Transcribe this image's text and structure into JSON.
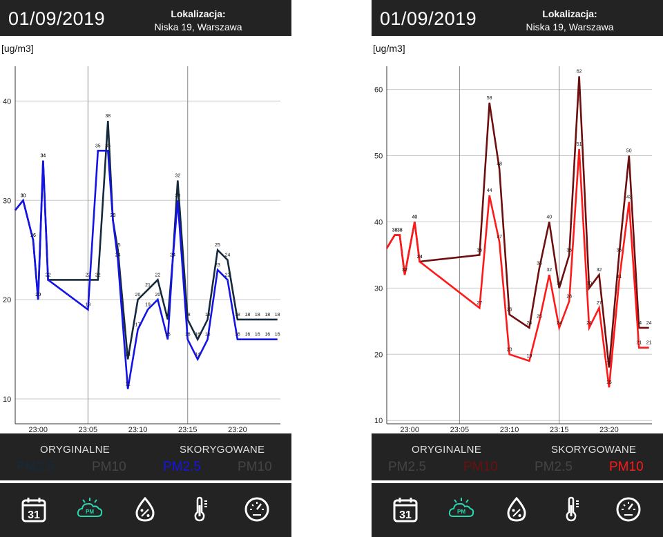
{
  "panels": [
    {
      "date": "01/09/2019",
      "location_title": "Lokalizacja:",
      "location_address": "Niska 19, Warszawa",
      "unit": "[ug/m3]",
      "legend": {
        "original": "ORYGINALNE",
        "corrected": "SKORYGOWANE",
        "items": [
          {
            "label": "PM2.5",
            "color": "#152a3d"
          },
          {
            "label": "PM10",
            "color": "#444444"
          },
          {
            "label": "PM2.5",
            "color": "#1414e6"
          },
          {
            "label": "PM10",
            "color": "#444444"
          }
        ]
      },
      "toolbar": {
        "calendar_day": "31",
        "pm_label": "PM",
        "active": "pm"
      }
    },
    {
      "date": "01/09/2019",
      "location_title": "Lokalizacja:",
      "location_address": "Niska 19, Warszawa",
      "unit": "[ug/m3]",
      "legend": {
        "original": "ORYGINALNE",
        "corrected": "SKORYGOWANE",
        "items": [
          {
            "label": "PM2.5",
            "color": "#444444"
          },
          {
            "label": "PM10",
            "color": "#6e0f0f"
          },
          {
            "label": "PM2.5",
            "color": "#444444"
          },
          {
            "label": "PM10",
            "color": "#ff1a1a"
          }
        ]
      },
      "toolbar": {
        "calendar_day": "31",
        "pm_label": "PM",
        "active": "pm"
      }
    }
  ],
  "colors": {
    "active_icon": "#2bd6b0",
    "icon": "#ffffff",
    "bar_bg": "#232323"
  },
  "chart_data": [
    {
      "type": "line",
      "x_ticks": [
        "23:00",
        "23:05",
        "23:10",
        "23:15",
        "23:20"
      ],
      "x_tick_minutes": [
        0,
        5,
        10,
        15,
        20
      ],
      "xlim": [
        -2.3,
        24.3
      ],
      "y_ticks": [
        10,
        20,
        30,
        40
      ],
      "ylim": [
        7.5,
        43.5
      ],
      "grid": true,
      "series": [
        {
          "name": "PM2.5",
          "color": "#152a3d",
          "labels_shown": true,
          "x": [
            -2.3,
            -1.5,
            -0.5,
            0,
            0.5,
            1,
            5,
            6,
            7,
            7.5,
            8,
            9,
            10,
            11,
            12,
            13,
            13.5,
            14,
            15,
            16,
            17,
            18,
            19,
            20,
            21,
            22,
            23,
            24
          ],
          "values": [
            29,
            30,
            26,
            20,
            34,
            22,
            22,
            22,
            38,
            28,
            25,
            14,
            20,
            21,
            22,
            18,
            24,
            32,
            18,
            16,
            18,
            25,
            24,
            18,
            18,
            18,
            18,
            18
          ]
        },
        {
          "name": "PM2.5",
          "color": "#1414e6",
          "labels_shown": true,
          "x": [
            -2.3,
            -1.5,
            -0.5,
            0,
            0.5,
            1,
            5,
            6,
            7,
            7.5,
            8,
            9,
            10,
            11,
            12,
            13,
            13.5,
            14,
            15,
            16,
            17,
            18,
            19,
            20,
            21,
            22,
            23,
            24
          ],
          "values": [
            29,
            30,
            26,
            20,
            34,
            22,
            19,
            35,
            35,
            28,
            24,
            11,
            17,
            19,
            20,
            16,
            24,
            30,
            16,
            14,
            16,
            23,
            22,
            16,
            16,
            16,
            16,
            16
          ]
        }
      ]
    },
    {
      "type": "line",
      "x_ticks": [
        "23:00",
        "23:05",
        "23:10",
        "23:15",
        "23:20"
      ],
      "x_tick_minutes": [
        0,
        5,
        10,
        15,
        20
      ],
      "xlim": [
        -2.3,
        24.3
      ],
      "y_ticks": [
        10,
        20,
        30,
        40,
        50,
        60
      ],
      "ylim": [
        9.5,
        63.5
      ],
      "grid": true,
      "series": [
        {
          "name": "PM10",
          "color": "#6e0f0f",
          "labels_shown": true,
          "x": [
            -2.3,
            -1.5,
            -1,
            -0.5,
            0.5,
            1,
            7,
            8,
            9,
            10,
            12,
            13,
            14,
            15,
            16,
            17,
            18,
            19,
            20,
            21,
            22,
            23,
            24
          ],
          "values": [
            36,
            38,
            38,
            32,
            40,
            34,
            35,
            58,
            48,
            26,
            24,
            33,
            40,
            30,
            35,
            62,
            30,
            32,
            18,
            35,
            50,
            24,
            24
          ]
        },
        {
          "name": "PM10",
          "color": "#ff1a1a",
          "labels_shown": true,
          "x": [
            -2.3,
            -1.5,
            -1,
            -0.5,
            0.5,
            1,
            7,
            8,
            9,
            10,
            12,
            13,
            14,
            15,
            16,
            17,
            18,
            19,
            20,
            21,
            22,
            23,
            24
          ],
          "values": [
            36,
            38,
            38,
            32,
            40,
            34,
            27,
            44,
            37,
            20,
            19,
            25,
            32,
            24,
            28,
            51,
            24,
            27,
            15,
            31,
            43,
            21,
            21
          ]
        }
      ]
    }
  ]
}
